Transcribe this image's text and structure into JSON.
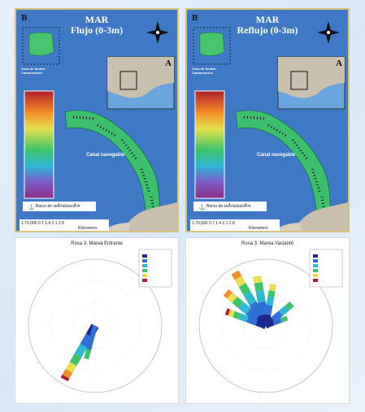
{
  "maps": [
    {
      "corner_letter": "B",
      "title_line1": "MAR",
      "title_line2": "Flujo (0-3m)",
      "inset_letter": "A",
      "zone_label": "Zona de fondeo\nCamaroneros",
      "canal_label": "Canal navegable",
      "legend_label": "Barco de seÃ±alizaciÃ³n",
      "scale_text": "1:70,000  0.7  1.4  2.1  2.8",
      "scale_unit": "Kilometers"
    },
    {
      "corner_letter": "B",
      "title_line1": "MAR",
      "title_line2": "Reflujo (0-3m)",
      "inset_letter": "A",
      "zone_label": "Zona de fondeo\nCamaroneros",
      "canal_label": "Canal navegable",
      "legend_label": "Barco de seÃ±alizaciÃ³n",
      "scale_text": "1:70,000  0.7  1.4  2.1  2.8",
      "scale_unit": "Kilometers"
    }
  ],
  "colors": {
    "ocean": "#3f78c4",
    "land": "#c9c0b0",
    "inset_bg": "#6aa6dd",
    "canal_green": "#3dc46a",
    "frame": "#d9c27a"
  },
  "roses": [
    {
      "title": "Rosa 3. Marea Entrante"
    },
    {
      "title": "Rosa 3. Marea Vaciante"
    }
  ]
}
